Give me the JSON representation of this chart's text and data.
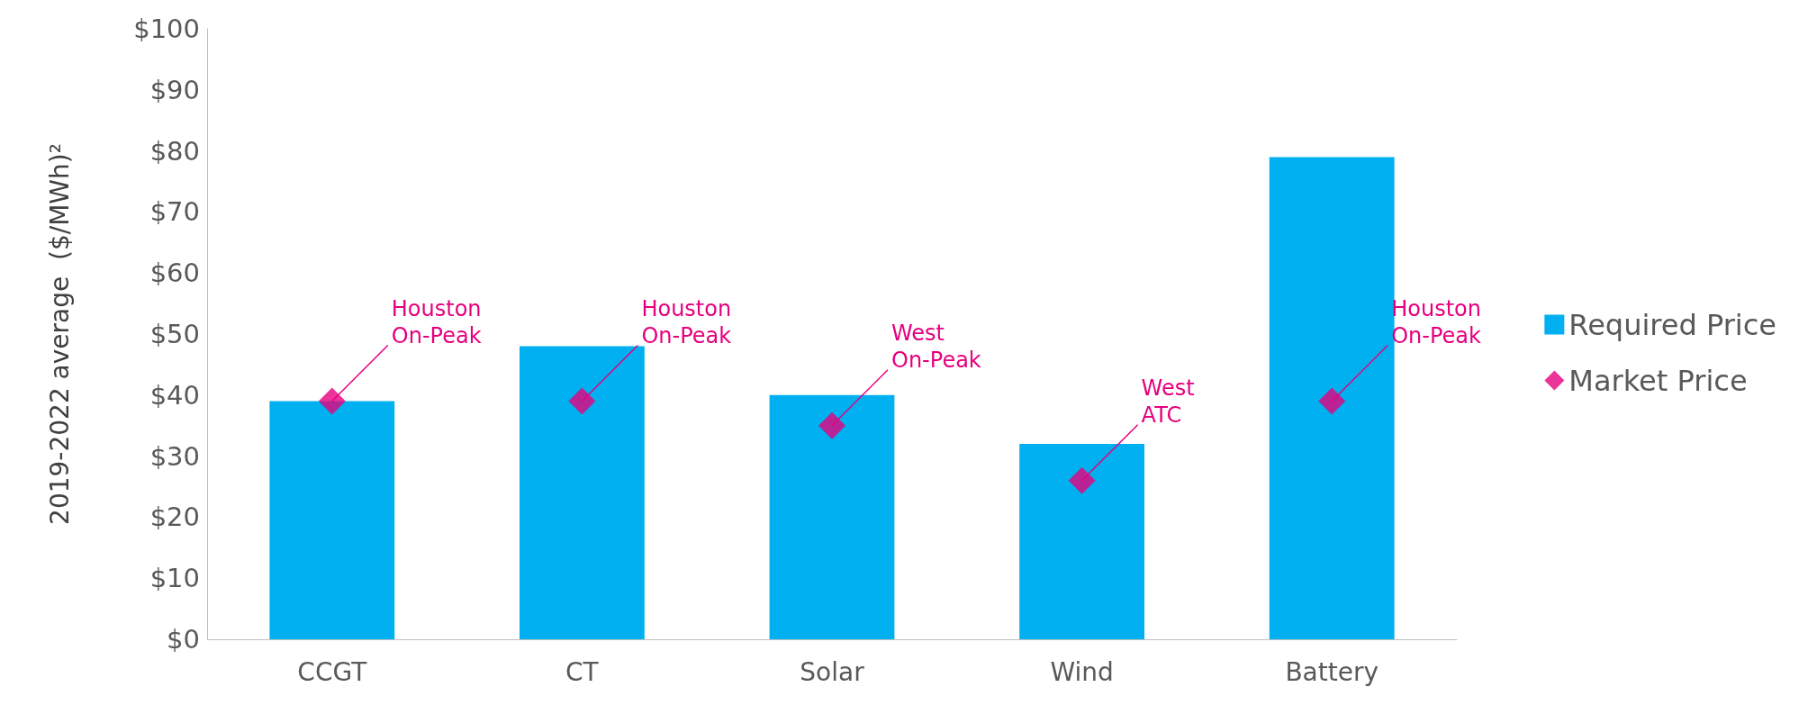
{
  "chart_data": {
    "type": "bar",
    "ylabel": "2019-2022 average  ($/MWh)²",
    "categories": [
      "CCGT",
      "CT",
      "Solar",
      "Wind",
      "Battery"
    ],
    "series": [
      {
        "name": "Required Price",
        "color": "#00b0f0",
        "values": [
          39,
          48,
          40,
          32,
          79
        ]
      },
      {
        "name": "Market Price",
        "type": "scatter",
        "color": "#e6007e",
        "marker": "diamond",
        "values": [
          39,
          39,
          35,
          26,
          39
        ]
      }
    ],
    "annotations": [
      {
        "text": "Houston\nOn-Peak",
        "x": "CCGT",
        "y": 39
      },
      {
        "text": "Houston\nOn-Peak",
        "x": "CT",
        "y": 39
      },
      {
        "text": "West\nOn-Peak",
        "x": "Solar",
        "y": 35
      },
      {
        "text": "West\nATC",
        "x": "Wind",
        "y": 26
      },
      {
        "text": "Houston\nOn-Peak",
        "x": "Battery",
        "y": 39
      }
    ],
    "ylim": [
      0,
      100
    ],
    "yticks": [
      {
        "value": 0,
        "label": "$0"
      },
      {
        "value": 10,
        "label": "$10"
      },
      {
        "value": 20,
        "label": "$20"
      },
      {
        "value": 30,
        "label": "$30"
      },
      {
        "value": 40,
        "label": "$40"
      },
      {
        "value": 50,
        "label": "$50"
      },
      {
        "value": 60,
        "label": "$60"
      },
      {
        "value": 70,
        "label": "$70"
      },
      {
        "value": 80,
        "label": "$80"
      },
      {
        "value": 90,
        "label": "$90"
      },
      {
        "value": 100,
        "label": "$100"
      }
    ],
    "grid": false,
    "legend": "right"
  }
}
